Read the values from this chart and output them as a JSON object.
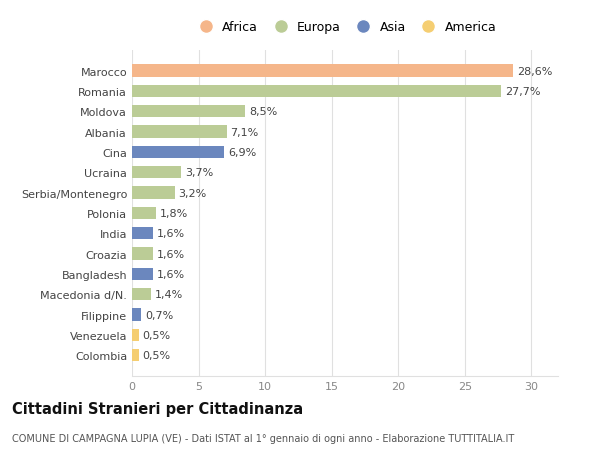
{
  "countries": [
    "Marocco",
    "Romania",
    "Moldova",
    "Albania",
    "Cina",
    "Ucraina",
    "Serbia/Montenegro",
    "Polonia",
    "India",
    "Croazia",
    "Bangladesh",
    "Macedonia d/N.",
    "Filippine",
    "Venezuela",
    "Colombia"
  ],
  "values": [
    28.6,
    27.7,
    8.5,
    7.1,
    6.9,
    3.7,
    3.2,
    1.8,
    1.6,
    1.6,
    1.6,
    1.4,
    0.7,
    0.5,
    0.5
  ],
  "labels": [
    "28,6%",
    "27,7%",
    "8,5%",
    "7,1%",
    "6,9%",
    "3,7%",
    "3,2%",
    "1,8%",
    "1,6%",
    "1,6%",
    "1,6%",
    "1,4%",
    "0,7%",
    "0,5%",
    "0,5%"
  ],
  "continents": [
    "Africa",
    "Europa",
    "Europa",
    "Europa",
    "Asia",
    "Europa",
    "Europa",
    "Europa",
    "Asia",
    "Europa",
    "Asia",
    "Europa",
    "Asia",
    "America",
    "America"
  ],
  "colors": {
    "Africa": "#F5B68A",
    "Europa": "#BBCC96",
    "Asia": "#6B87BE",
    "America": "#F5CE72"
  },
  "legend_order": [
    "Africa",
    "Europa",
    "Asia",
    "America"
  ],
  "xlim": [
    0,
    32
  ],
  "xticks": [
    0,
    5,
    10,
    15,
    20,
    25,
    30
  ],
  "title": "Cittadini Stranieri per Cittadinanza",
  "subtitle": "COMUNE DI CAMPAGNA LUPIA (VE) - Dati ISTAT al 1° gennaio di ogni anno - Elaborazione TUTTITALIA.IT",
  "background_color": "#ffffff",
  "grid_color": "#e0e0e0",
  "bar_height": 0.6,
  "label_fontsize": 8.0,
  "tick_fontsize": 8.0,
  "title_fontsize": 10.5,
  "subtitle_fontsize": 7.0,
  "legend_fontsize": 9.0
}
